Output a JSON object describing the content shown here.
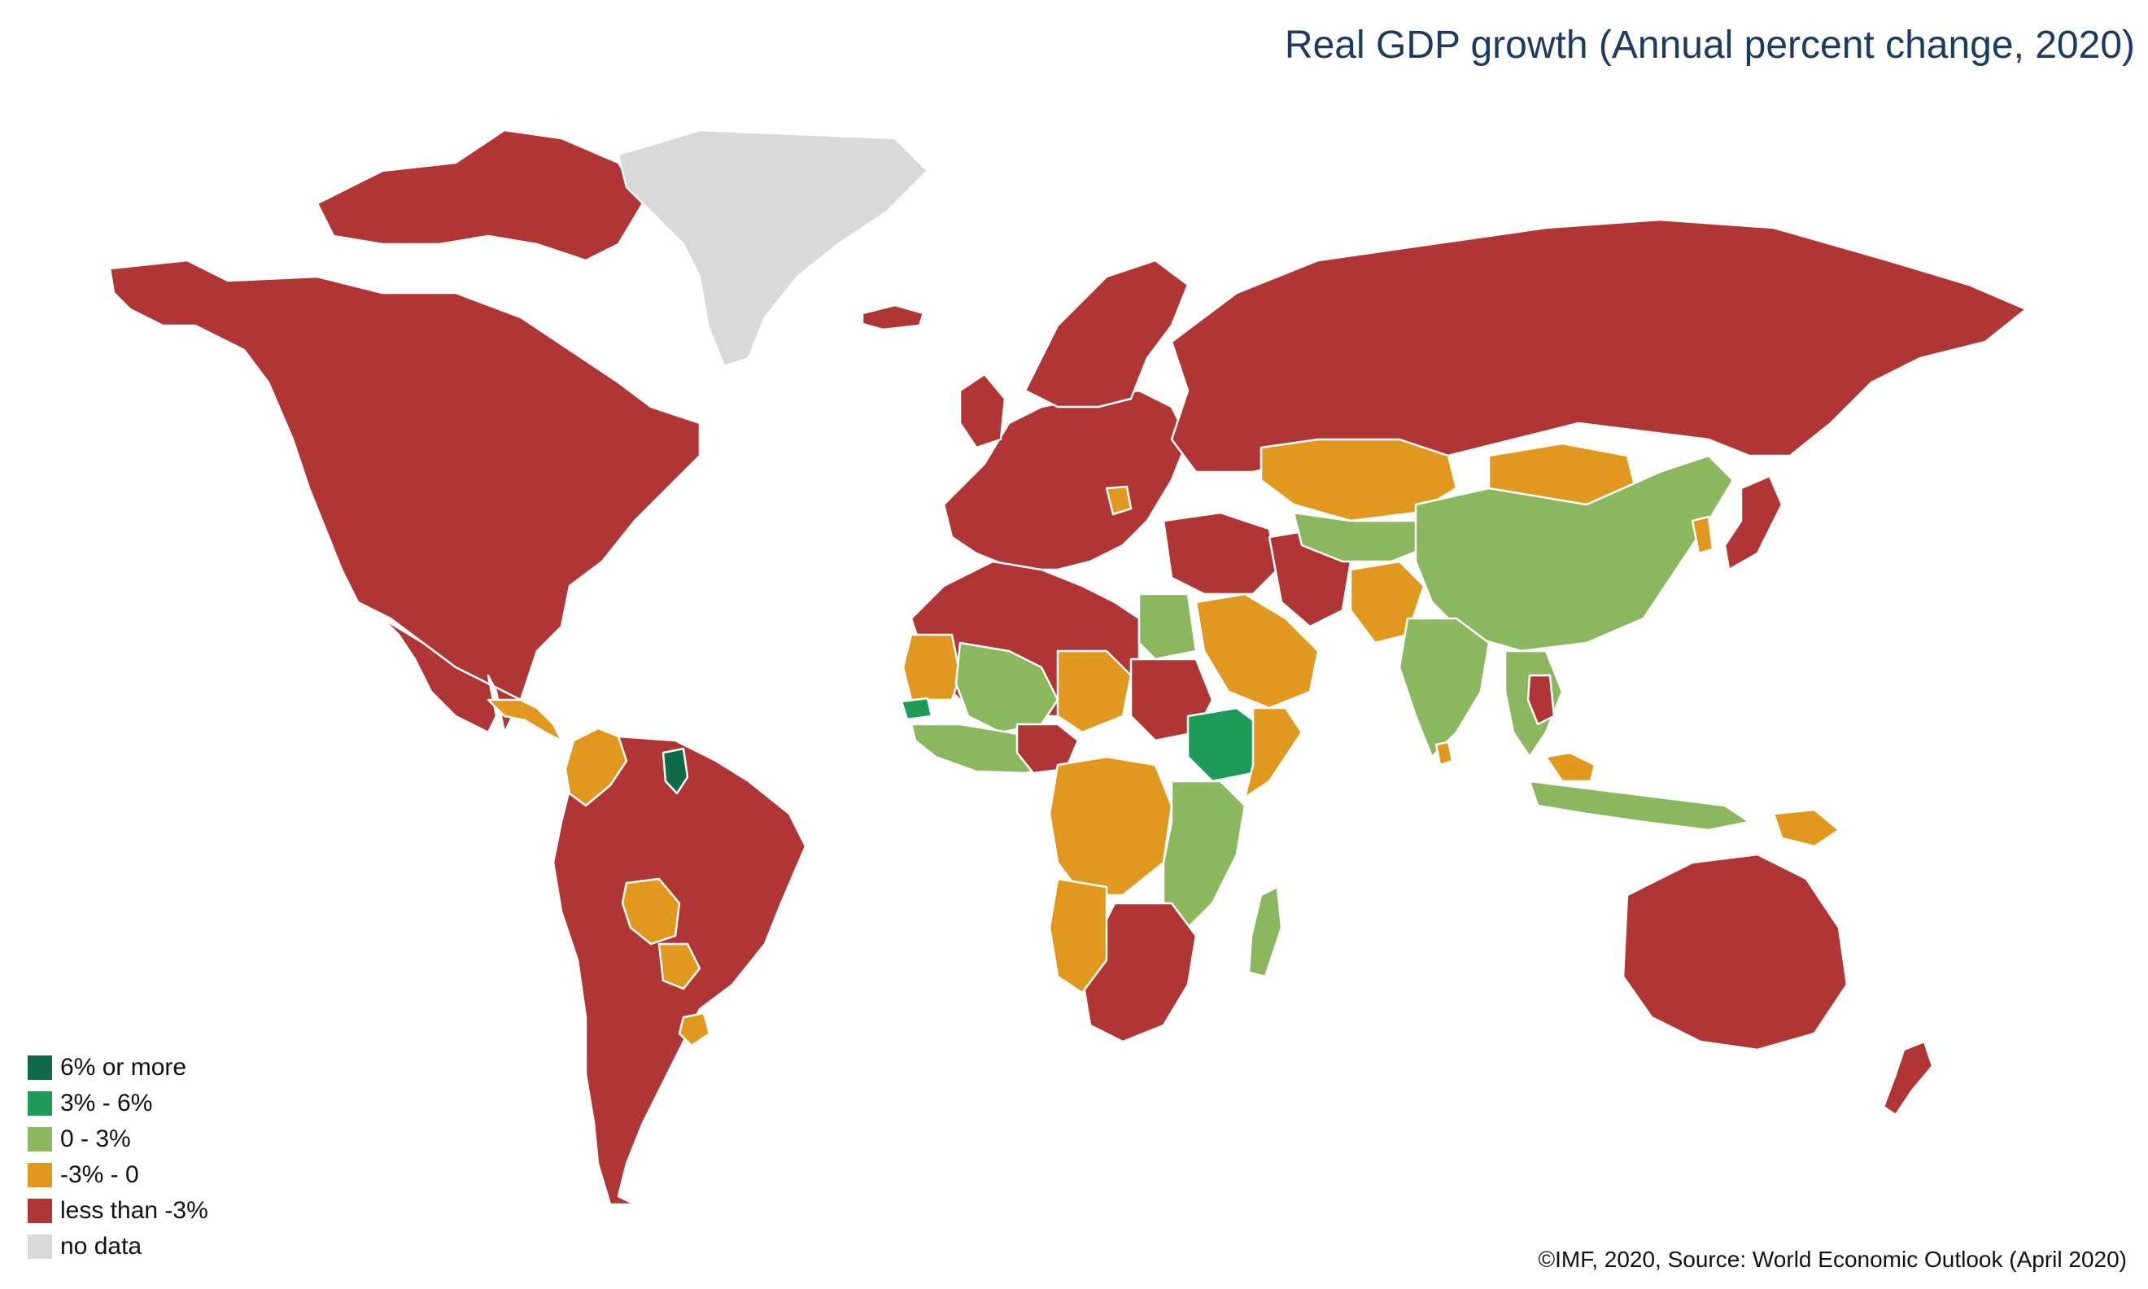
{
  "title": "Real GDP growth (Annual percent change, 2020)",
  "source": "©IMF, 2020, Source: World Economic Outlook (April 2020)",
  "colors": {
    "6% or more": "#0e6b4a",
    "3% - 6%": "#1e9b58",
    "0 - 3%": "#8bb85e",
    "-3% - 0": "#e0981e",
    "less than -3%": "#b03535",
    "no data": "#d9d9d9"
  },
  "legend": [
    {
      "label": "6% or more",
      "color": "#0e6b4a"
    },
    {
      "label": "3% - 6%",
      "color": "#1e9b58"
    },
    {
      "label": "0 - 3%",
      "color": "#8bb85e"
    },
    {
      "label": " -3% - 0",
      "color": "#e0981e"
    },
    {
      "label": "less than -3%",
      "color": "#b03535"
    },
    {
      "label": "no data",
      "color": "#d9d9d9"
    }
  ],
  "regions": [
    {
      "name": "north-america",
      "category": "less than -3%"
    },
    {
      "name": "canadian-arctic-islands",
      "category": "less than -3%"
    },
    {
      "name": "greenland",
      "category": "no data"
    },
    {
      "name": "iceland",
      "category": "less than -3%"
    },
    {
      "name": "mexico-central-america",
      "category": "less than -3%"
    },
    {
      "name": "central-america-south",
      "category": "-3% - 0"
    },
    {
      "name": "south-america",
      "category": "less than -3%"
    },
    {
      "name": "colombia",
      "category": "-3% - 0"
    },
    {
      "name": "bolivia",
      "category": "-3% - 0"
    },
    {
      "name": "paraguay",
      "category": "-3% - 0"
    },
    {
      "name": "uruguay",
      "category": "-3% - 0"
    },
    {
      "name": "guyana",
      "category": "6% or more"
    },
    {
      "name": "europe",
      "category": "less than -3%"
    },
    {
      "name": "scandinavia",
      "category": "less than -3%"
    },
    {
      "name": "uk-ireland",
      "category": "less than -3%"
    },
    {
      "name": "serbia",
      "category": "-3% - 0"
    },
    {
      "name": "russia",
      "category": "less than -3%"
    },
    {
      "name": "north-africa",
      "category": "less than -3%"
    },
    {
      "name": "mauritania",
      "category": "-3% - 0"
    },
    {
      "name": "mali-burkina",
      "category": "0 - 3%"
    },
    {
      "name": "senegal",
      "category": "3% - 6%"
    },
    {
      "name": "west-africa-coast",
      "category": "0 - 3%"
    },
    {
      "name": "niger",
      "category": "-3% - 0"
    },
    {
      "name": "nigeria",
      "category": "less than -3%"
    },
    {
      "name": "egypt",
      "category": "0 - 3%"
    },
    {
      "name": "sudan",
      "category": "less than -3%"
    },
    {
      "name": "ethiopia",
      "category": "3% - 6%"
    },
    {
      "name": "somalia",
      "category": "-3% - 0"
    },
    {
      "name": "central-africa",
      "category": "-3% - 0"
    },
    {
      "name": "east-africa",
      "category": "0 - 3%"
    },
    {
      "name": "southern-africa",
      "category": "less than -3%"
    },
    {
      "name": "namibia-angola-south",
      "category": "-3% - 0"
    },
    {
      "name": "madagascar",
      "category": "0 - 3%"
    },
    {
      "name": "middle-east",
      "category": "less than -3%"
    },
    {
      "name": "arabian-peninsula",
      "category": "-3% - 0"
    },
    {
      "name": "iran",
      "category": "less than -3%"
    },
    {
      "name": "kazakhstan",
      "category": "-3% - 0"
    },
    {
      "name": "mongolia",
      "category": "-3% - 0"
    },
    {
      "name": "central-asia",
      "category": "0 - 3%"
    },
    {
      "name": "afghanistan-pakistan",
      "category": "-3% - 0"
    },
    {
      "name": "china",
      "category": "0 - 3%"
    },
    {
      "name": "india",
      "category": "0 - 3%"
    },
    {
      "name": "sri-lanka",
      "category": "-3% - 0"
    },
    {
      "name": "southeast-asia",
      "category": "0 - 3%"
    },
    {
      "name": "thailand",
      "category": "less than -3%"
    },
    {
      "name": "malaysia",
      "category": "-3% - 0"
    },
    {
      "name": "indonesia",
      "category": "0 - 3%"
    },
    {
      "name": "korea",
      "category": "-3% - 0"
    },
    {
      "name": "japan",
      "category": "less than -3%"
    },
    {
      "name": "papua-new-guinea",
      "category": "-3% - 0"
    },
    {
      "name": "australia",
      "category": "less than -3%"
    },
    {
      "name": "new-zealand",
      "category": "less than -3%"
    },
    {
      "name": "antarctic-none",
      "category": "no data"
    }
  ]
}
